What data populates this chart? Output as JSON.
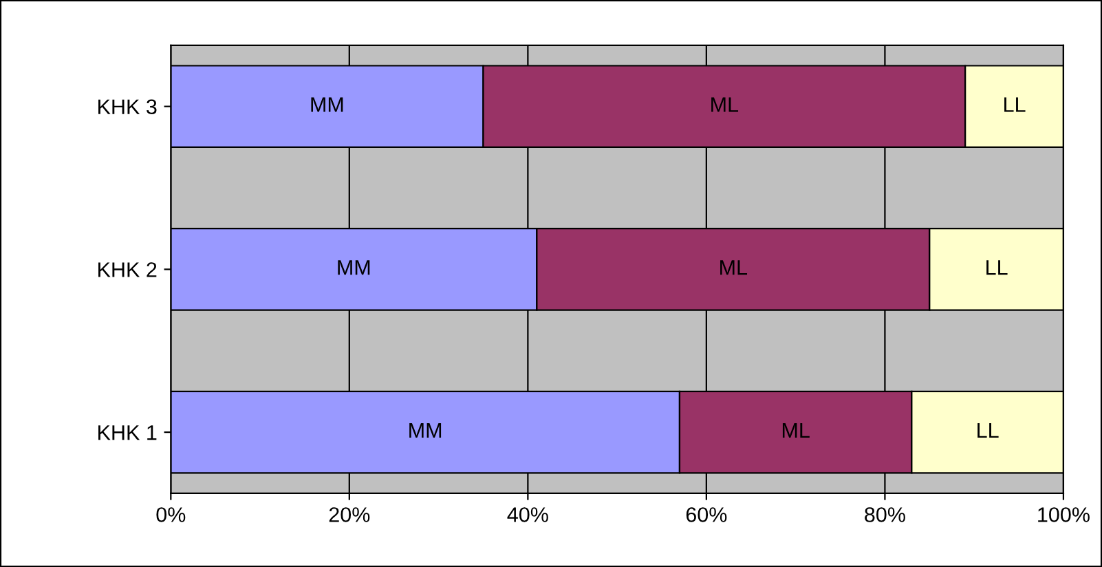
{
  "chart_data": {
    "type": "bar",
    "orientation": "horizontal",
    "stacked": true,
    "categories": [
      "KHK 3",
      "KHK 2",
      "KHK 1"
    ],
    "series": [
      {
        "name": "MM",
        "color": "#9999ff",
        "values": [
          35,
          41,
          57
        ]
      },
      {
        "name": "ML",
        "color": "#993366",
        "values": [
          54,
          44,
          26
        ]
      },
      {
        "name": "LL",
        "color": "#ffffcc",
        "values": [
          11,
          15,
          17
        ]
      }
    ],
    "xlim": [
      0,
      100
    ],
    "xticks": [
      {
        "value": 0,
        "label": "0%"
      },
      {
        "value": 20,
        "label": "20%"
      },
      {
        "value": 40,
        "label": "40%"
      },
      {
        "value": 60,
        "label": "60%"
      },
      {
        "value": 80,
        "label": "80%"
      },
      {
        "value": 100,
        "label": "100%"
      }
    ],
    "grid": "x",
    "legend": false
  }
}
